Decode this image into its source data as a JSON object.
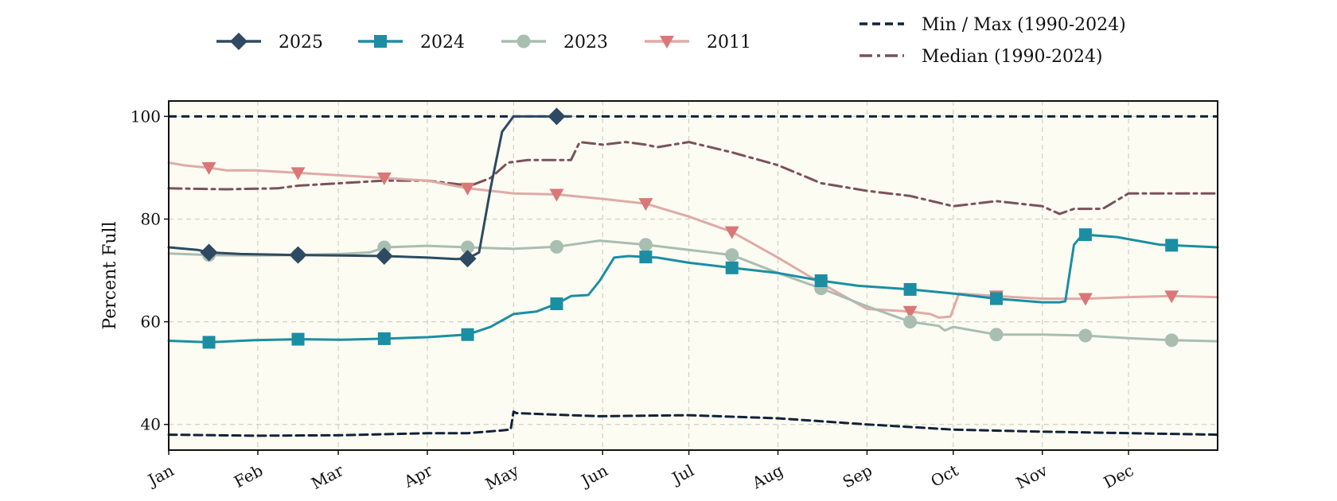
{
  "chart_data": {
    "type": "line",
    "ylabel": "Percent Full",
    "xlabel": "",
    "ylim": [
      35,
      103
    ],
    "xlim": [
      0,
      365
    ],
    "yticks": [
      40,
      60,
      80,
      100
    ],
    "months": [
      "Jan",
      "Feb",
      "Mar",
      "Apr",
      "May",
      "Jun",
      "Jul",
      "Aug",
      "Sep",
      "Oct",
      "Nov",
      "Dec"
    ],
    "month_starts": [
      0,
      31,
      59,
      90,
      120,
      151,
      181,
      212,
      243,
      273,
      304,
      334
    ],
    "grid": true,
    "plot_background": "#fcfcf2",
    "legend": {
      "placement": "top",
      "entries": [
        "2025",
        "2024",
        "2023",
        "2011",
        "Min / Max (1990-2024)",
        "Median (1990-2024)"
      ]
    },
    "series": [
      {
        "name": "2025",
        "color": "#2e4a62",
        "marker": "diamond",
        "x": [
          0,
          10,
          14,
          25,
          45,
          60,
          75,
          90,
          100,
          104,
          108,
          112,
          116,
          120,
          130,
          135,
          140
        ],
        "y": [
          74.5,
          74,
          73.5,
          73.2,
          73,
          72.9,
          72.8,
          72.5,
          72.2,
          72.3,
          73.5,
          86,
          97,
          100,
          100,
          100,
          100
        ]
      },
      {
        "name": "2024",
        "color": "#1b8ea3",
        "marker": "square",
        "x": [
          0,
          14,
          30,
          45,
          60,
          75,
          90,
          104,
          112,
          120,
          128,
          135,
          140,
          146,
          150,
          155,
          160,
          170,
          181,
          196,
          212,
          227,
          240,
          258,
          273,
          288,
          304,
          310,
          312,
          315,
          318,
          330,
          345,
          365
        ],
        "y": [
          56.3,
          56,
          56.4,
          56.6,
          56.5,
          56.7,
          57,
          57.5,
          59,
          61.5,
          62,
          63.5,
          65,
          65.2,
          68,
          72.5,
          72.8,
          72.5,
          71.5,
          70.5,
          69.5,
          68,
          67,
          66.3,
          65.5,
          64.5,
          63.8,
          63.8,
          64,
          75,
          77,
          76.5,
          75,
          74.5
        ]
      },
      {
        "name": "2023",
        "color": "#a8beb1",
        "marker": "circle",
        "x": [
          0,
          14,
          30,
          45,
          60,
          70,
          75,
          90,
          104,
          120,
          135,
          150,
          166,
          181,
          196,
          212,
          227,
          243,
          258,
          268,
          270,
          273,
          288,
          304,
          319,
          334,
          349,
          365
        ],
        "y": [
          73.3,
          73,
          72.9,
          73,
          73.2,
          73.5,
          74.5,
          74.8,
          74.5,
          74.2,
          74.6,
          75.8,
          75,
          74,
          73,
          69.5,
          66.5,
          63,
          60,
          59.2,
          58.3,
          59,
          57.5,
          57.5,
          57.3,
          56.8,
          56.4,
          56.2
        ]
      },
      {
        "name": "2011",
        "color": "#d97777",
        "line_color": "#e0aaa6",
        "marker": "triangle-down",
        "x": [
          0,
          5,
          10,
          14,
          20,
          30,
          45,
          60,
          75,
          90,
          104,
          120,
          135,
          150,
          166,
          181,
          196,
          212,
          227,
          243,
          258,
          265,
          268,
          272,
          275,
          288,
          304,
          319,
          334,
          349,
          365
        ],
        "y": [
          91,
          90.5,
          90.2,
          90,
          89.5,
          89.5,
          89,
          88.5,
          88,
          87.5,
          86,
          85,
          84.8,
          84,
          83,
          80.5,
          77.5,
          72.5,
          67.5,
          62.5,
          62,
          61.5,
          60.8,
          61,
          65.5,
          65,
          64.5,
          64.5,
          64.8,
          65,
          64.8
        ]
      },
      {
        "name": "Min / Max (1990-2024)",
        "color": "#11223a",
        "marker": "none",
        "dash": "dashed",
        "x": [
          0,
          30,
          60,
          90,
          104,
          115,
          119,
          120,
          121,
          130,
          150,
          181,
          212,
          243,
          273,
          304,
          334,
          365
        ],
        "y": [
          38,
          37.8,
          37.9,
          38.3,
          38.3,
          38.8,
          39,
          42.5,
          42.2,
          42,
          41.6,
          41.8,
          41.2,
          40,
          39,
          38.6,
          38.3,
          38
        ],
        "y_upper": [
          100,
          100,
          100,
          100,
          100,
          100,
          100,
          100,
          100,
          100,
          100,
          100,
          100,
          100,
          100,
          100,
          100,
          100
        ]
      },
      {
        "name": "Median (1990-2024)",
        "color": "#7a525a",
        "marker": "none",
        "dash": "dashdot",
        "x": [
          0,
          20,
          38,
          45,
          60,
          75,
          90,
          105,
          112,
          118,
          125,
          132,
          140,
          143,
          151,
          159,
          166,
          170,
          181,
          196,
          212,
          227,
          243,
          258,
          273,
          288,
          304,
          310,
          315,
          320,
          325,
          334,
          349,
          365
        ],
        "y": [
          86,
          85.8,
          86,
          86.5,
          87,
          87.5,
          87.5,
          86.5,
          88,
          91,
          91.5,
          91.5,
          91.5,
          95,
          94.5,
          95,
          94.5,
          94,
          95,
          93,
          90.5,
          87,
          85.5,
          84.5,
          82.5,
          83.5,
          82.5,
          81,
          82,
          82,
          82,
          85,
          85,
          85
        ]
      }
    ]
  }
}
